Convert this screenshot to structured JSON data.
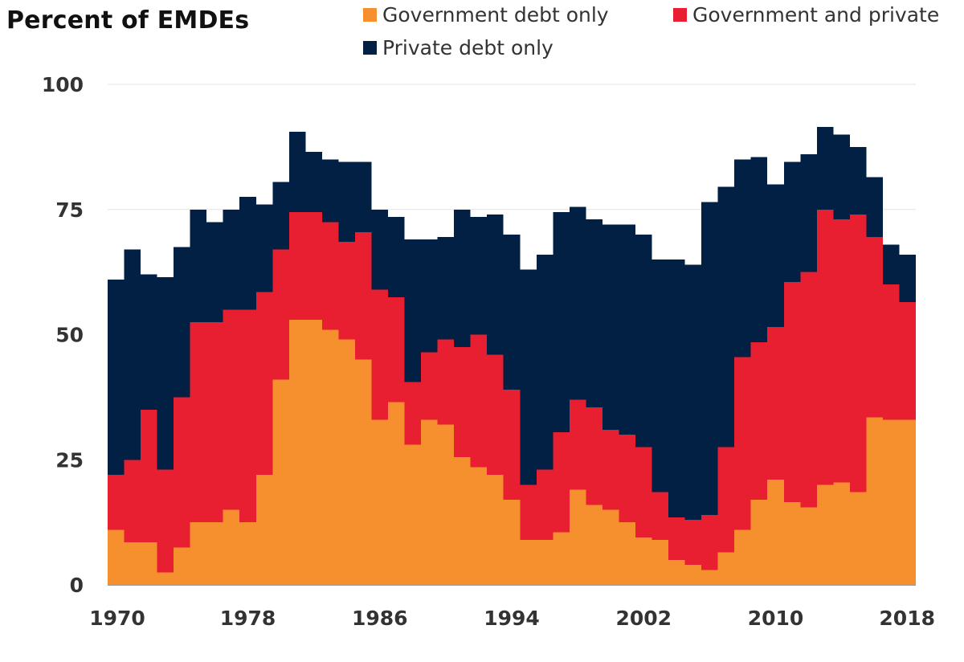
{
  "chart_data": {
    "type": "area",
    "title": "Percent of EMDEs",
    "xlabel": "",
    "ylabel": "",
    "x": [
      1970,
      1971,
      1972,
      1973,
      1974,
      1975,
      1976,
      1977,
      1978,
      1979,
      1980,
      1981,
      1982,
      1983,
      1984,
      1985,
      1986,
      1987,
      1988,
      1989,
      1990,
      1991,
      1992,
      1993,
      1994,
      1995,
      1996,
      1997,
      1998,
      1999,
      2000,
      2001,
      2002,
      2003,
      2004,
      2005,
      2006,
      2007,
      2008,
      2009,
      2010,
      2011,
      2012,
      2013,
      2014,
      2015,
      2016,
      2017,
      2018
    ],
    "xlim": [
      1970,
      2018
    ],
    "ylim": [
      0,
      100
    ],
    "x_ticks": [
      "1970",
      "1978",
      "1986",
      "1994",
      "2002",
      "2010",
      "2018"
    ],
    "y_ticks": [
      "0",
      "25",
      "50",
      "75",
      "100"
    ],
    "stacked": true,
    "step": true,
    "grid": true,
    "legend_position": "top",
    "series": [
      {
        "name": "Government debt only",
        "color": "#f68f2d",
        "values": [
          11,
          8.5,
          8.5,
          2.5,
          7.5,
          12.5,
          12.5,
          15,
          12.5,
          22,
          41,
          53,
          53,
          51,
          49,
          45,
          33,
          36.5,
          28,
          33,
          32,
          25.5,
          23.5,
          22,
          17,
          9,
          9,
          10.5,
          19,
          16,
          15,
          12.5,
          9.5,
          9,
          5,
          4,
          3,
          6.5,
          11,
          17,
          21,
          16.5,
          15.5,
          20,
          20.5,
          18.5,
          33.5,
          33,
          33
        ]
      },
      {
        "name": "Government and private",
        "color": "#e81e31",
        "values": [
          11,
          16.5,
          26.5,
          20.5,
          30,
          40,
          40,
          40,
          42.5,
          36.5,
          26,
          21.5,
          21.5,
          21.5,
          19.5,
          25.5,
          26,
          21,
          12.5,
          13.5,
          17,
          22,
          26.5,
          24,
          22,
          11,
          14,
          20,
          18,
          19.5,
          16,
          17.5,
          18,
          9.5,
          8.5,
          9,
          11,
          21,
          34.5,
          31.5,
          30.5,
          44,
          47,
          55,
          52.5,
          55.5,
          36,
          27,
          23.5
        ]
      },
      {
        "name": "Private debt only",
        "color": "#021f44",
        "values": [
          39,
          42,
          27,
          38.5,
          30,
          22.5,
          20,
          20,
          22.5,
          17.5,
          13.5,
          16,
          12,
          12.5,
          16,
          14,
          16,
          16,
          28.5,
          22.5,
          20.5,
          27.5,
          23.5,
          28,
          31,
          43,
          43,
          44,
          38.5,
          37.5,
          41,
          42,
          42.5,
          46.5,
          51.5,
          51,
          62.5,
          52,
          39.5,
          37,
          28.5,
          24,
          23.5,
          16.5,
          17,
          13.5,
          12,
          8,
          9.5
        ]
      }
    ]
  }
}
